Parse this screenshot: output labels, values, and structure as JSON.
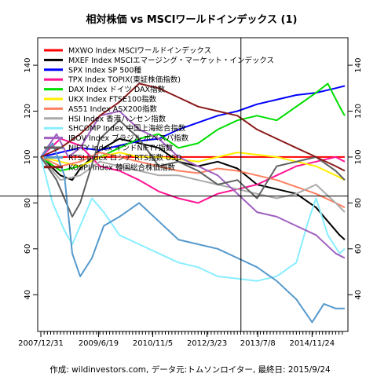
{
  "chart_data": {
    "type": "line",
    "title": "相対株価 vs MSCIワールドインデックス (1)",
    "caption": "作成: wildinvestors.com, データ元:トムソンロイター, 最終日: 2015/9/24",
    "xlabel": "",
    "ylabel": "",
    "x_ticks": [
      "2007/12/31",
      "2009/6/19",
      "2010/11/5",
      "2012/3/23",
      "2013/7/8",
      "2014/11/24"
    ],
    "x_range": [
      "2007-12-31",
      "2015-09-24"
    ],
    "ylim": [
      24,
      152
    ],
    "y_ticks": [
      40,
      60,
      80,
      100,
      120,
      140
    ],
    "grid": false,
    "legend_position": "top-left",
    "reference_lines": {
      "horizontal": 83,
      "vertical_date": "2013-02-01"
    },
    "series": [
      {
        "name": "MXWO Index MSCIワールドインデックス",
        "color": "#ff0000",
        "values": [
          [
            0,
            100
          ],
          [
            0.5,
            100
          ],
          [
            1,
            100
          ],
          [
            2,
            100
          ],
          [
            3,
            100
          ],
          [
            4,
            100
          ],
          [
            5,
            100
          ],
          [
            6,
            100
          ],
          [
            7,
            100
          ],
          [
            7.73,
            100
          ]
        ]
      },
      {
        "name": "MXEF Index MSCIエマージング・マーケット・インデックス",
        "color": "#000000",
        "values": [
          [
            0,
            100
          ],
          [
            0.5,
            92
          ],
          [
            0.8,
            90
          ],
          [
            1,
            95
          ],
          [
            1.5,
            103
          ],
          [
            2,
            108
          ],
          [
            2.5,
            106
          ],
          [
            3,
            104
          ],
          [
            3.5,
            98
          ],
          [
            4,
            96
          ],
          [
            4.5,
            98
          ],
          [
            5,
            95
          ],
          [
            5.5,
            88
          ],
          [
            6,
            86
          ],
          [
            6.5,
            84
          ],
          [
            7,
            78
          ],
          [
            7.3,
            72
          ],
          [
            7.6,
            66
          ],
          [
            7.73,
            64
          ]
        ]
      },
      {
        "name": "SPX Index SP 500種",
        "color": "#0000ff",
        "values": [
          [
            0,
            100
          ],
          [
            0.5,
            102
          ],
          [
            1,
            104
          ],
          [
            1.5,
            103
          ],
          [
            2,
            105
          ],
          [
            2.5,
            107
          ],
          [
            3,
            108
          ],
          [
            3.5,
            112
          ],
          [
            4,
            115
          ],
          [
            4.5,
            118
          ],
          [
            5,
            120
          ],
          [
            5.5,
            123
          ],
          [
            6,
            125
          ],
          [
            6.5,
            127
          ],
          [
            7,
            128
          ],
          [
            7.5,
            130
          ],
          [
            7.73,
            131
          ]
        ]
      },
      {
        "name": "TPX Index TOPIX(東証株価指数)",
        "color": "#ff1493",
        "values": [
          [
            0,
            100
          ],
          [
            0.5,
            108
          ],
          [
            1,
            105
          ],
          [
            1.5,
            96
          ],
          [
            2,
            94
          ],
          [
            2.5,
            90
          ],
          [
            3,
            85
          ],
          [
            3.5,
            82
          ],
          [
            4,
            80
          ],
          [
            4.5,
            84
          ],
          [
            5,
            86
          ],
          [
            5.5,
            88
          ],
          [
            6,
            92
          ],
          [
            6.5,
            96
          ],
          [
            7,
            98
          ],
          [
            7.5,
            100
          ],
          [
            7.73,
            98
          ]
        ]
      },
      {
        "name": "DAX Index ドイツ DAX指数",
        "color": "#00dd00",
        "values": [
          [
            0,
            100
          ],
          [
            0.5,
            94
          ],
          [
            1,
            96
          ],
          [
            1.5,
            100
          ],
          [
            2,
            104
          ],
          [
            2.5,
            108
          ],
          [
            3,
            110
          ],
          [
            3.5,
            104
          ],
          [
            4,
            106
          ],
          [
            4.5,
            112
          ],
          [
            5,
            116
          ],
          [
            5.5,
            118
          ],
          [
            6,
            116
          ],
          [
            6.5,
            122
          ],
          [
            7,
            128
          ],
          [
            7.3,
            132
          ],
          [
            7.6,
            122
          ],
          [
            7.73,
            118
          ]
        ]
      },
      {
        "name": "UKX Index FTSE100指数",
        "color": "#ffee00",
        "values": [
          [
            0,
            100
          ],
          [
            0.5,
            98
          ],
          [
            1,
            96
          ],
          [
            1.5,
            100
          ],
          [
            2,
            102
          ],
          [
            2.5,
            100
          ],
          [
            3,
            100
          ],
          [
            3.5,
            99
          ],
          [
            4,
            98
          ],
          [
            4.5,
            100
          ],
          [
            5,
            102
          ],
          [
            5.5,
            101
          ],
          [
            6,
            100
          ],
          [
            6.5,
            98
          ],
          [
            7,
            96
          ],
          [
            7.5,
            92
          ],
          [
            7.73,
            90
          ]
        ]
      },
      {
        "name": "AS51 Index ASX200指数",
        "color": "#ff8060",
        "values": [
          [
            0,
            100
          ],
          [
            0.5,
            96
          ],
          [
            1,
            98
          ],
          [
            1.5,
            102
          ],
          [
            2,
            100
          ],
          [
            2.5,
            98
          ],
          [
            3,
            96
          ],
          [
            3.5,
            94
          ],
          [
            4,
            93
          ],
          [
            4.5,
            95
          ],
          [
            5,
            94
          ],
          [
            5.5,
            92
          ],
          [
            6,
            90
          ],
          [
            6.5,
            87
          ],
          [
            7,
            84
          ],
          [
            7.5,
            80
          ],
          [
            7.73,
            78
          ]
        ]
      },
      {
        "name": "HSI Index 香港ハンセン指数",
        "color": "#aaaaaa",
        "values": [
          [
            0,
            100
          ],
          [
            0.5,
            90
          ],
          [
            1,
            92
          ],
          [
            1.5,
            98
          ],
          [
            2,
            96
          ],
          [
            2.5,
            94
          ],
          [
            3,
            92
          ],
          [
            3.5,
            92
          ],
          [
            4,
            90
          ],
          [
            4.5,
            88
          ],
          [
            5,
            86
          ],
          [
            5.5,
            84
          ],
          [
            6,
            82
          ],
          [
            6.5,
            84
          ],
          [
            7,
            88
          ],
          [
            7.5,
            80
          ],
          [
            7.73,
            76
          ]
        ]
      },
      {
        "name": "SHCOMP Index 中国上海総合指数",
        "color": "#88eeff",
        "values": [
          [
            0,
            100
          ],
          [
            0.3,
            80
          ],
          [
            0.6,
            68
          ],
          [
            0.8,
            62
          ],
          [
            1,
            70
          ],
          [
            1.3,
            82
          ],
          [
            1.6,
            76
          ],
          [
            2,
            66
          ],
          [
            2.5,
            62
          ],
          [
            3,
            58
          ],
          [
            3.5,
            54
          ],
          [
            4,
            52
          ],
          [
            4.5,
            48
          ],
          [
            5,
            47
          ],
          [
            5.5,
            46
          ],
          [
            6,
            48
          ],
          [
            6.5,
            54
          ],
          [
            6.8,
            72
          ],
          [
            7,
            82
          ],
          [
            7.3,
            66
          ],
          [
            7.6,
            58
          ],
          [
            7.73,
            60
          ]
        ]
      },
      {
        "name": "IBOV Index ブラジル ボベスパ指数",
        "color": "#a060c0",
        "values": [
          [
            0,
            100
          ],
          [
            0.4,
            110
          ],
          [
            0.7,
            100
          ],
          [
            1,
            104
          ],
          [
            1.5,
            118
          ],
          [
            2,
            120
          ],
          [
            2.5,
            112
          ],
          [
            3,
            108
          ],
          [
            3.5,
            100
          ],
          [
            4,
            96
          ],
          [
            4.5,
            92
          ],
          [
            5,
            84
          ],
          [
            5.5,
            76
          ],
          [
            6,
            74
          ],
          [
            6.5,
            70
          ],
          [
            7,
            66
          ],
          [
            7.5,
            58
          ],
          [
            7.73,
            56
          ]
        ]
      },
      {
        "name": "NIFTY Index インドNIFTY指数",
        "color": "#606060",
        "values": [
          [
            0,
            100
          ],
          [
            0.4,
            90
          ],
          [
            0.8,
            74
          ],
          [
            1,
            80
          ],
          [
            1.5,
            108
          ],
          [
            2,
            116
          ],
          [
            2.5,
            108
          ],
          [
            3,
            96
          ],
          [
            3.5,
            98
          ],
          [
            4,
            94
          ],
          [
            4.5,
            88
          ],
          [
            5,
            90
          ],
          [
            5.5,
            82
          ],
          [
            6,
            96
          ],
          [
            6.5,
            98
          ],
          [
            7,
            100
          ],
          [
            7.5,
            94
          ],
          [
            7.73,
            90
          ]
        ]
      },
      {
        "name": "RTSI Index ロシア RTS指数 USD",
        "color": "#5599cc",
        "values": [
          [
            0,
            100
          ],
          [
            0.3,
            106
          ],
          [
            0.6,
            92
          ],
          [
            0.8,
            58
          ],
          [
            1,
            48
          ],
          [
            1.3,
            56
          ],
          [
            1.6,
            70
          ],
          [
            2,
            74
          ],
          [
            2.5,
            80
          ],
          [
            3,
            72
          ],
          [
            3.5,
            64
          ],
          [
            4,
            62
          ],
          [
            4.5,
            60
          ],
          [
            5,
            56
          ],
          [
            5.5,
            52
          ],
          [
            6,
            46
          ],
          [
            6.5,
            38
          ],
          [
            6.9,
            28
          ],
          [
            7.2,
            36
          ],
          [
            7.5,
            34
          ],
          [
            7.73,
            34
          ]
        ]
      },
      {
        "name": "KOSPI Index 韓国総合株価指数",
        "color": "#8b1a1a",
        "values": [
          [
            0,
            100
          ],
          [
            0.5,
            104
          ],
          [
            1,
            110
          ],
          [
            1.5,
            118
          ],
          [
            2,
            124
          ],
          [
            2.5,
            132
          ],
          [
            3,
            130
          ],
          [
            3.5,
            126
          ],
          [
            4,
            122
          ],
          [
            4.5,
            120
          ],
          [
            5,
            118
          ],
          [
            5.5,
            112
          ],
          [
            6,
            108
          ],
          [
            6.5,
            104
          ],
          [
            7,
            100
          ],
          [
            7.5,
            96
          ],
          [
            7.73,
            94
          ]
        ]
      }
    ]
  }
}
